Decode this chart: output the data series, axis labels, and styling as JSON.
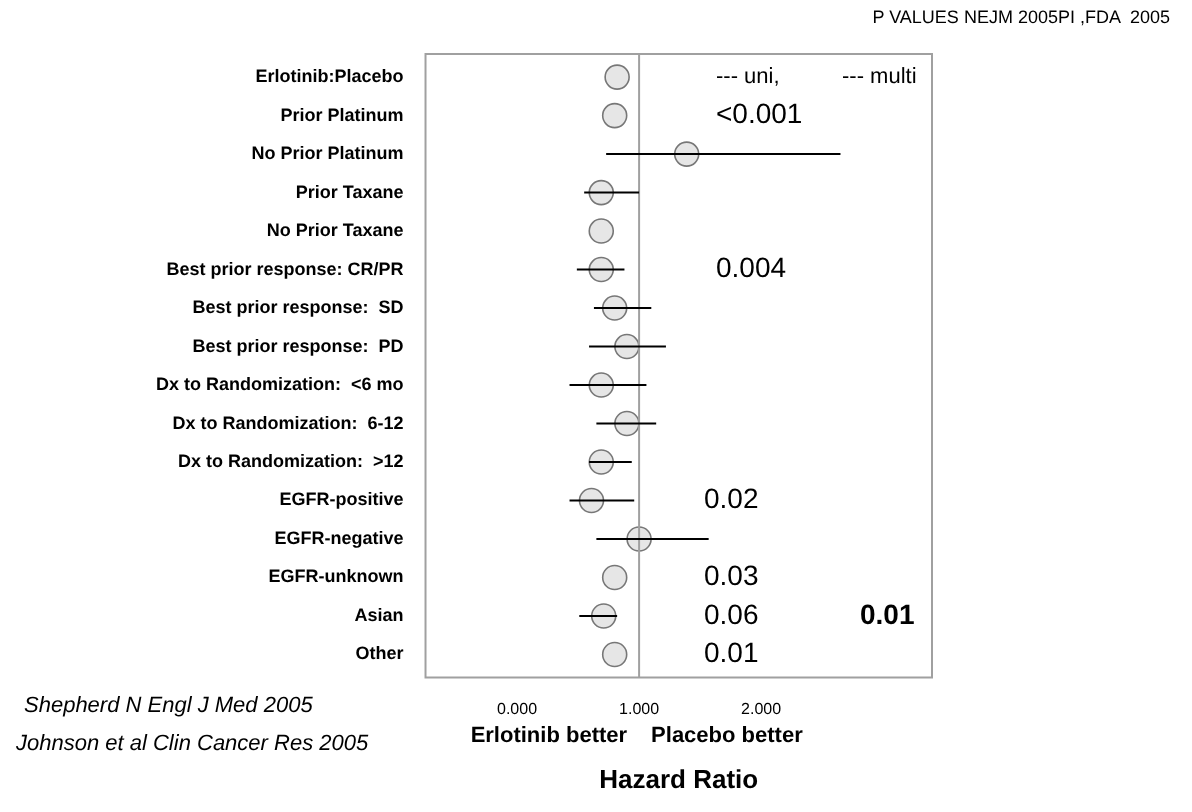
{
  "chart_data": {
    "type": "scatter",
    "orientation": "horizontal",
    "title": "P VALUES NEJM 2005PI ,FDA  2005",
    "xlabel": "Hazard Ratio",
    "categories": [
      "Erlotinib:Placebo",
      "Prior Platinum",
      "No Prior Platinum",
      "Prior Taxane",
      "No Prior Taxane",
      "Best prior response: CR/PR",
      "Best prior response:  SD",
      "Best prior response:  PD",
      "Dx to Randomization:  <6 mo",
      "Dx to Randomization:  6-12",
      "Dx to Randomization:  >12",
      "EGFR-positive",
      "EGFR-negative",
      "EGFR-unknown",
      "Asian",
      "Other"
    ],
    "values": [
      0.82,
      0.8,
      1.39,
      0.69,
      0.69,
      0.69,
      0.8,
      0.9,
      0.69,
      0.9,
      0.69,
      0.61,
      1.0,
      0.8,
      0.71,
      0.8
    ],
    "errors": [
      null,
      null,
      [
        0.73,
        2.65
      ],
      [
        0.55,
        1.0
      ],
      null,
      [
        0.49,
        0.88
      ],
      [
        0.63,
        1.1
      ],
      [
        0.59,
        1.22
      ],
      [
        0.43,
        1.06
      ],
      [
        0.65,
        1.14
      ],
      [
        0.59,
        0.94
      ],
      [
        0.43,
        0.96
      ],
      [
        0.65,
        1.57
      ],
      null,
      [
        0.51,
        0.82
      ],
      null
    ],
    "color": "#e6e6e6",
    "marker": "circle",
    "grid": false,
    "legend": false,
    "xlim": [
      -0.75,
      3.4
    ],
    "xticks": [
      {
        "value": 0,
        "label": "0.000"
      },
      {
        "value": 1,
        "label": "1.000"
      },
      {
        "value": 2,
        "label": "2.000"
      }
    ],
    "ref_lines": [
      {
        "axis": "x",
        "value": 1,
        "color": "#a0a0a0"
      }
    ],
    "annotations": [
      "--- uni,",
      "--- multi",
      "<0.001",
      "0.004",
      "0.02",
      "0.03",
      "0.06",
      "0.01",
      "0.01",
      "Erlotinib better",
      "Placebo better",
      "Shepherd N Engl J Med 2005",
      "Johnson et al Clin Cancer Res 2005"
    ]
  }
}
